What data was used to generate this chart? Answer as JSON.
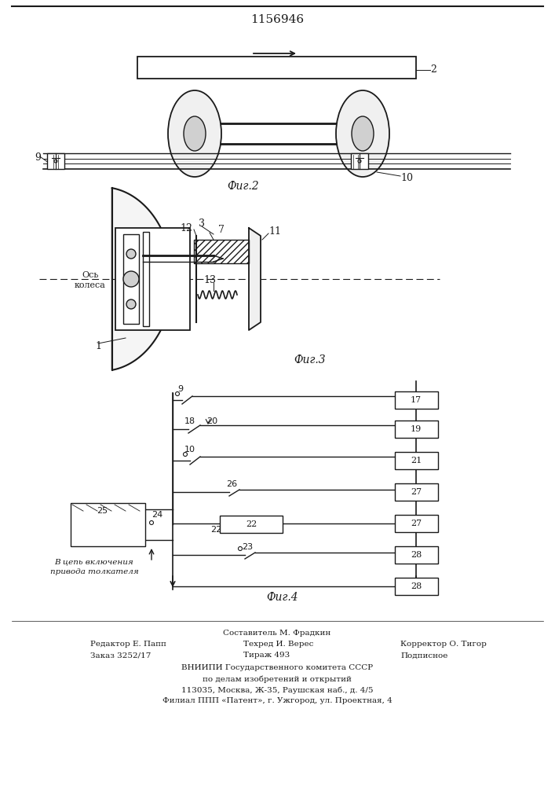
{
  "patent_number": "1156946",
  "fig2_label": "Фиг.2",
  "fig3_label": "Фиг.3",
  "fig4_label": "Фиг.4",
  "footer_line1": "Составитель М. Фрадкин",
  "footer_line2_left": "Редактор Е. Папп",
  "footer_line2_mid": "Техред И. Верес",
  "footer_line2_right": "Корректор О. Тигор",
  "footer_line3_left": "Заказ 3252/17",
  "footer_line3_mid": "Тираж 493",
  "footer_line3_right": "Подписное",
  "footer_line4": "ВНИИПИ Государственного комитета СССР",
  "footer_line5": "по делам изобретений и открытий",
  "footer_line6": "113035, Москва, Ж-35, Раушская наб., д. 4/5",
  "footer_line7": "Филиал ППП «Патент», г. Ужгород, ул. Проектная, 4",
  "bg_color": "#ffffff",
  "line_color": "#1a1a1a"
}
